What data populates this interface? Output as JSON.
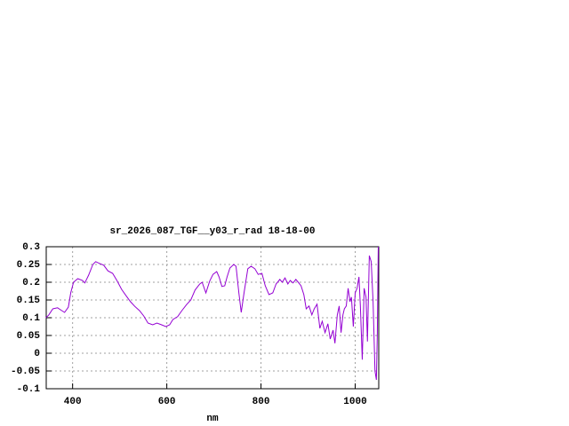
{
  "chart_data": {
    "type": "line",
    "title": "sr_2026_087_TGF__y03_r_rad 18-18-00",
    "x_label": "nm",
    "xlim": [
      344,
      1050
    ],
    "ylim": [
      -0.1,
      0.3
    ],
    "xticks": [
      400,
      600,
      800,
      1000
    ],
    "yticks": [
      -0.1,
      -0.05,
      0,
      0.05,
      0.1,
      0.15,
      0.2,
      0.25,
      0.3
    ],
    "grid": true,
    "x": [
      343,
      349,
      358,
      368,
      377,
      383,
      391,
      396,
      402,
      411,
      421,
      426,
      434,
      443,
      449,
      457,
      466,
      475,
      485,
      494,
      504,
      513,
      523,
      532,
      542,
      551,
      560,
      570,
      579,
      589,
      598,
      606,
      613,
      623,
      632,
      642,
      651,
      660,
      670,
      675,
      683,
      691,
      698,
      706,
      711,
      717,
      723,
      728,
      734,
      742,
      747,
      753,
      758,
      764,
      772,
      779,
      787,
      794,
      802,
      809,
      817,
      825,
      832,
      840,
      845,
      851,
      857,
      862,
      868,
      874,
      879,
      885,
      891,
      896,
      902,
      908,
      913,
      919,
      925,
      930,
      936,
      942,
      947,
      953,
      957,
      962,
      966,
      970,
      974,
      977,
      981,
      985,
      989,
      992,
      996,
      1000,
      1004,
      1008,
      1011,
      1015,
      1019,
      1023,
      1026,
      1030,
      1034,
      1038,
      1042,
      1045,
      1047,
      1049
    ],
    "series": [
      {
        "color": "#9400d3",
        "values": [
          0.1,
          0.107,
          0.125,
          0.128,
          0.12,
          0.115,
          0.13,
          0.17,
          0.2,
          0.21,
          0.205,
          0.198,
          0.22,
          0.25,
          0.258,
          0.253,
          0.248,
          0.232,
          0.225,
          0.205,
          0.18,
          0.163,
          0.145,
          0.132,
          0.12,
          0.105,
          0.085,
          0.08,
          0.085,
          0.08,
          0.075,
          0.08,
          0.095,
          0.103,
          0.12,
          0.137,
          0.15,
          0.178,
          0.195,
          0.2,
          0.17,
          0.203,
          0.222,
          0.23,
          0.215,
          0.188,
          0.19,
          0.215,
          0.24,
          0.25,
          0.245,
          0.17,
          0.115,
          0.17,
          0.238,
          0.245,
          0.238,
          0.222,
          0.225,
          0.19,
          0.165,
          0.17,
          0.195,
          0.208,
          0.2,
          0.212,
          0.195,
          0.205,
          0.198,
          0.208,
          0.2,
          0.19,
          0.165,
          0.125,
          0.133,
          0.108,
          0.125,
          0.138,
          0.07,
          0.09,
          0.058,
          0.083,
          0.04,
          0.065,
          0.028,
          0.108,
          0.133,
          0.058,
          0.108,
          0.125,
          0.133,
          0.183,
          0.145,
          0.158,
          0.075,
          0.17,
          0.183,
          0.215,
          0.133,
          -0.018,
          0.183,
          0.158,
          0.033,
          0.275,
          0.258,
          0.145,
          -0.05,
          -0.075,
          0.058,
          0.3
        ]
      }
    ]
  }
}
